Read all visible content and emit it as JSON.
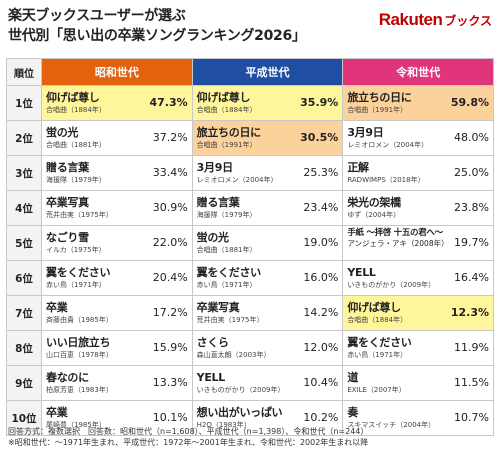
{
  "header": {
    "title_line1": "楽天ブックスユーザーが選ぶ",
    "title_line2": "世代別「思い出の卒業ソングランキング2026」",
    "logo_text": "Rakuten",
    "logo_sub": "ブックス"
  },
  "table": {
    "rank_header": "順位",
    "era_headers": [
      "昭和世代",
      "平成世代",
      "令和世代"
    ],
    "rows": [
      {
        "rank": "1位",
        "showa": {
          "song": "仰げば尊し",
          "artist": "合唱曲（1884年）",
          "pct": "47.3%",
          "hl": "yellow"
        },
        "heisei": {
          "song": "仰げば尊し",
          "artist": "合唱曲（1884年）",
          "pct": "35.9%",
          "hl": "yellow"
        },
        "reiwa": {
          "song": "旅立ちの日に",
          "artist": "合唱曲（1991年）",
          "pct": "59.8%",
          "hl": "orange"
        }
      },
      {
        "rank": "2位",
        "showa": {
          "song": "蛍の光",
          "artist": "合唱曲（1881年）",
          "pct": "37.2%",
          "hl": ""
        },
        "heisei": {
          "song": "旅立ちの日に",
          "artist": "合唱曲（1991年）",
          "pct": "30.5%",
          "hl": "orange"
        },
        "reiwa": {
          "song": "3月9日",
          "artist": "レミオロメン（2004年）",
          "pct": "48.0%",
          "hl": ""
        }
      },
      {
        "rank": "3位",
        "showa": {
          "song": "贈る言葉",
          "artist": "海援隊（1979年）",
          "pct": "33.4%",
          "hl": ""
        },
        "heisei": {
          "song": "3月9日",
          "artist": "レミオロメン（2004年）",
          "pct": "25.3%",
          "hl": ""
        },
        "reiwa": {
          "song": "正解",
          "artist": "RADWIMPS（2018年）",
          "pct": "25.0%",
          "hl": ""
        }
      },
      {
        "rank": "4位",
        "showa": {
          "song": "卒業写真",
          "artist": "荒井由実（1975年）",
          "pct": "30.9%",
          "hl": ""
        },
        "heisei": {
          "song": "贈る言葉",
          "artist": "海援隊（1979年）",
          "pct": "23.4%",
          "hl": ""
        },
        "reiwa": {
          "song": "栄光の架橋",
          "artist": "ゆず（2004年）",
          "pct": "23.8%",
          "hl": ""
        }
      },
      {
        "rank": "5位",
        "showa": {
          "song": "なごり雪",
          "artist": "イルカ（1975年）",
          "pct": "22.0%",
          "hl": ""
        },
        "heisei": {
          "song": "蛍の光",
          "artist": "合唱曲（1881年）",
          "pct": "19.0%",
          "hl": ""
        },
        "reiwa": {
          "song": "手紙 ～拝啓 十五の君へ～",
          "artist": "アンジェラ・アキ（2008年）",
          "pct": "19.7%",
          "hl": "",
          "small": true
        }
      },
      {
        "rank": "6位",
        "showa": {
          "song": "翼をください",
          "artist": "赤い鳥（1971年）",
          "pct": "20.4%",
          "hl": ""
        },
        "heisei": {
          "song": "翼をください",
          "artist": "赤い鳥（1971年）",
          "pct": "16.0%",
          "hl": ""
        },
        "reiwa": {
          "song": "YELL",
          "artist": "いきものがかり（2009年）",
          "pct": "16.4%",
          "hl": ""
        }
      },
      {
        "rank": "7位",
        "showa": {
          "song": "卒業",
          "artist": "斉藤由貴（1985年）",
          "pct": "17.2%",
          "hl": ""
        },
        "heisei": {
          "song": "卒業写真",
          "artist": "荒井由実（1975年）",
          "pct": "14.2%",
          "hl": ""
        },
        "reiwa": {
          "song": "仰げば尊し",
          "artist": "合唱曲（1884年）",
          "pct": "12.3%",
          "hl": "yellow"
        }
      },
      {
        "rank": "8位",
        "showa": {
          "song": "いい日旅立ち",
          "artist": "山口百恵（1978年）",
          "pct": "15.9%",
          "hl": ""
        },
        "heisei": {
          "song": "さくら",
          "artist": "森山直太朗（2003年）",
          "pct": "12.0%",
          "hl": ""
        },
        "reiwa": {
          "song": "翼をください",
          "artist": "赤い鳥（1971年）",
          "pct": "11.9%",
          "hl": ""
        }
      },
      {
        "rank": "9位",
        "showa": {
          "song": "春なのに",
          "artist": "柏原芳恵（1983年）",
          "pct": "13.3%",
          "hl": ""
        },
        "heisei": {
          "song": "YELL",
          "artist": "いきものがかり（2009年）",
          "pct": "10.4%",
          "hl": ""
        },
        "reiwa": {
          "song": "道",
          "artist": "EXILE（2007年）",
          "pct": "11.5%",
          "hl": ""
        }
      },
      {
        "rank": "10位",
        "showa": {
          "song": "卒業",
          "artist": "尾崎豊（1985年）",
          "pct": "10.1%",
          "hl": ""
        },
        "heisei": {
          "song": "想い出がいっぱい",
          "artist": "H2O（1983年）",
          "pct": "10.2%",
          "hl": ""
        },
        "reiwa": {
          "song": "奏",
          "artist": "スキマスイッチ（2004年）",
          "pct": "10.7%",
          "hl": ""
        }
      }
    ]
  },
  "footer": {
    "line1": "回答方式：複数選択　回答数：昭和世代（n=1,608）、平成世代（n=1,398）、令和世代（n=244）",
    "line2": "※昭和世代：～1971年生まれ、平成世代：1972年～2001年生まれ、令和世代：2002年生まれ以降"
  },
  "colors": {
    "showa": "#e2620e",
    "heisei": "#1f4ea3",
    "reiwa": "#e0357a",
    "highlight_yellow": "#fff59a",
    "highlight_orange": "#fcd29c",
    "brand": "#bf0000"
  },
  "chart_data": {
    "type": "table",
    "title": "楽天ブックスユーザーが選ぶ 世代別「思い出の卒業ソングランキング2026」",
    "columns": [
      "順位",
      "昭和世代",
      "平成世代",
      "令和世代"
    ],
    "series": [
      {
        "name": "昭和世代",
        "values": [
          47.3,
          37.2,
          33.4,
          30.9,
          22.0,
          20.4,
          17.2,
          15.9,
          13.3,
          10.1
        ]
      },
      {
        "name": "平成世代",
        "values": [
          35.9,
          30.5,
          25.3,
          23.4,
          19.0,
          16.0,
          14.2,
          12.0,
          10.4,
          10.2
        ]
      },
      {
        "name": "令和世代",
        "values": [
          59.8,
          48.0,
          25.0,
          23.8,
          19.7,
          16.4,
          12.3,
          11.9,
          11.5,
          10.7
        ]
      }
    ],
    "categories": [
      "1位",
      "2位",
      "3位",
      "4位",
      "5位",
      "6位",
      "7位",
      "8位",
      "9位",
      "10位"
    ]
  }
}
